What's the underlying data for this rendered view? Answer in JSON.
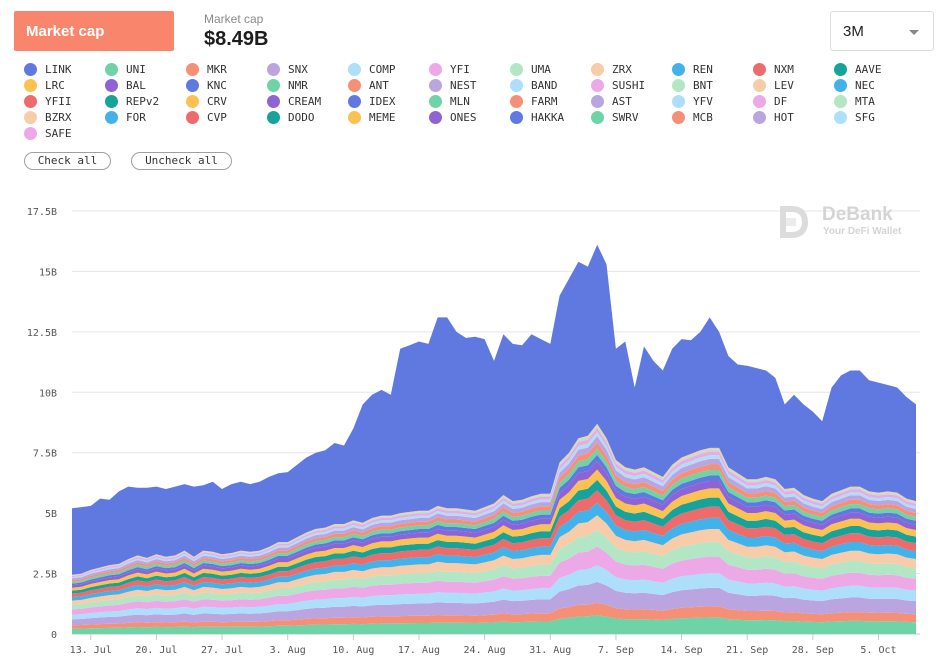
{
  "header": {
    "metric_button": "Market cap",
    "metric_label": "Market cap",
    "metric_value": "$8.49B",
    "range_select": "3M"
  },
  "legend_items": [
    {
      "label": "LINK",
      "color": "#6079e0"
    },
    {
      "label": "UNI",
      "color": "#6fd3a8"
    },
    {
      "label": "MKR",
      "color": "#f59077"
    },
    {
      "label": "SNX",
      "color": "#bba5e0"
    },
    {
      "label": "COMP",
      "color": "#aedffa"
    },
    {
      "label": "YFI",
      "color": "#eda8e7"
    },
    {
      "label": "UMA",
      "color": "#b2e6c4"
    },
    {
      "label": "ZRX",
      "color": "#f8cba9"
    },
    {
      "label": "REN",
      "color": "#42b2ea"
    },
    {
      "label": "NXM",
      "color": "#ee6b6b"
    },
    {
      "label": "AAVE",
      "color": "#15a39b"
    },
    {
      "label": "LRC",
      "color": "#fbc251"
    },
    {
      "label": "BAL",
      "color": "#8e63d6"
    },
    {
      "label": "KNC",
      "color": "#6079e0"
    },
    {
      "label": "NMR",
      "color": "#6fd3a8"
    },
    {
      "label": "ANT",
      "color": "#f59077"
    },
    {
      "label": "NEST",
      "color": "#bba5e0"
    },
    {
      "label": "BAND",
      "color": "#aedffa"
    },
    {
      "label": "SUSHI",
      "color": "#eda8e7"
    },
    {
      "label": "BNT",
      "color": "#b2e6c4"
    },
    {
      "label": "LEV",
      "color": "#f8cba9"
    },
    {
      "label": "NEC",
      "color": "#42b2ea"
    },
    {
      "label": "YFII",
      "color": "#ee6b6b"
    },
    {
      "label": "REPv2",
      "color": "#15a39b"
    },
    {
      "label": "CRV",
      "color": "#fbc251"
    },
    {
      "label": "CREAM",
      "color": "#8e63d6"
    },
    {
      "label": "IDEX",
      "color": "#6079e0"
    },
    {
      "label": "MLN",
      "color": "#6fd3a8"
    },
    {
      "label": "FARM",
      "color": "#f59077"
    },
    {
      "label": "AST",
      "color": "#bba5e0"
    },
    {
      "label": "YFV",
      "color": "#aedffa"
    },
    {
      "label": "DF",
      "color": "#eda8e7"
    },
    {
      "label": "MTA",
      "color": "#b2e6c4"
    },
    {
      "label": "BZRX",
      "color": "#f8cba9"
    },
    {
      "label": "FOR",
      "color": "#42b2ea"
    },
    {
      "label": "CVP",
      "color": "#ee6b6b"
    },
    {
      "label": "DODO",
      "color": "#15a39b"
    },
    {
      "label": "MEME",
      "color": "#fbc251"
    },
    {
      "label": "ONES",
      "color": "#8e63d6"
    },
    {
      "label": "HAKKA",
      "color": "#6079e0"
    },
    {
      "label": "SWRV",
      "color": "#6fd3a8"
    },
    {
      "label": "MCB",
      "color": "#f59077"
    },
    {
      "label": "HOT",
      "color": "#bba5e0"
    },
    {
      "label": "SFG",
      "color": "#aedffa"
    },
    {
      "label": "SAFE",
      "color": "#eda8e7"
    }
  ],
  "controls": {
    "check_all": "Check all",
    "uncheck_all": "Uncheck all"
  },
  "watermark": {
    "title": "DeBank",
    "subtitle": "Your DeFi Wallet"
  },
  "chart_data": {
    "type": "area",
    "stacked": true,
    "ylim": [
      0,
      17.5
    ],
    "y_ticks": [
      0,
      2.5,
      5,
      7.5,
      10,
      12.5,
      15,
      17.5
    ],
    "y_tick_labels": [
      "0",
      "2.5B",
      "5B",
      "7.5B",
      "10B",
      "12.5B",
      "15B",
      "17.5B"
    ],
    "x_tick_labels": [
      "13. Jul",
      "20. Jul",
      "27. Jul",
      "3. Aug",
      "10. Aug",
      "17. Aug",
      "24. Aug",
      "31. Aug",
      "7. Sep",
      "14. Sep",
      "21. Sep",
      "28. Sep",
      "5. Oct"
    ],
    "x_tick_index": [
      2,
      9,
      16,
      23,
      30,
      37,
      44,
      51,
      58,
      65,
      72,
      79,
      86
    ],
    "x_dates": [
      "Jul 11",
      "Jul 12",
      "Jul 13",
      "Jul 14",
      "Jul 15",
      "Jul 16",
      "Jul 17",
      "Jul 18",
      "Jul 19",
      "Jul 20",
      "Jul 21",
      "Jul 22",
      "Jul 23",
      "Jul 24",
      "Jul 25",
      "Jul 26",
      "Jul 27",
      "Jul 28",
      "Jul 29",
      "Jul 30",
      "Jul 31",
      "Aug 1",
      "Aug 2",
      "Aug 3",
      "Aug 4",
      "Aug 5",
      "Aug 6",
      "Aug 7",
      "Aug 8",
      "Aug 9",
      "Aug 10",
      "Aug 11",
      "Aug 12",
      "Aug 13",
      "Aug 14",
      "Aug 15",
      "Aug 16",
      "Aug 17",
      "Aug 18",
      "Aug 19",
      "Aug 20",
      "Aug 21",
      "Aug 22",
      "Aug 23",
      "Aug 24",
      "Aug 25",
      "Aug 26",
      "Aug 27",
      "Aug 28",
      "Aug 29",
      "Aug 30",
      "Aug 31",
      "Sep 1",
      "Sep 2",
      "Sep 3",
      "Sep 4",
      "Sep 5",
      "Sep 6",
      "Sep 7",
      "Sep 8",
      "Sep 9",
      "Sep 10",
      "Sep 11",
      "Sep 12",
      "Sep 13",
      "Sep 14",
      "Sep 15",
      "Sep 16",
      "Sep 17",
      "Sep 18",
      "Sep 19",
      "Sep 20",
      "Sep 21",
      "Sep 22",
      "Sep 23",
      "Sep 24",
      "Sep 25",
      "Sep 26",
      "Sep 27",
      "Sep 28",
      "Sep 29",
      "Sep 30",
      "Oct 1",
      "Oct 2",
      "Oct 3",
      "Oct 4",
      "Oct 5",
      "Oct 6",
      "Oct 7",
      "Oct 8",
      "Oct 9"
    ],
    "total_market_cap_billions": [
      5.2,
      5.25,
      5.3,
      5.6,
      5.55,
      5.9,
      6.1,
      6.05,
      6.05,
      6.1,
      6.0,
      6.1,
      6.2,
      6.1,
      6.15,
      6.3,
      6.0,
      6.2,
      6.3,
      6.2,
      6.3,
      6.5,
      6.65,
      6.7,
      7.0,
      7.3,
      7.5,
      7.6,
      7.9,
      7.8,
      8.5,
      9.5,
      9.9,
      10.1,
      9.9,
      11.8,
      11.95,
      12.1,
      12.0,
      13.1,
      13.1,
      12.5,
      12.25,
      12.3,
      12.2,
      11.3,
      12.4,
      12.0,
      11.95,
      12.4,
      12.2,
      12.0,
      14.0,
      14.7,
      15.4,
      15.2,
      16.1,
      15.3,
      11.8,
      12.1,
      10.2,
      11.9,
      11.3,
      10.9,
      11.8,
      12.2,
      12.15,
      12.5,
      13.1,
      12.5,
      11.5,
      11.15,
      11.1,
      11.0,
      10.9,
      10.6,
      9.5,
      9.9,
      9.5,
      9.2,
      8.8,
      10.2,
      10.7,
      10.9,
      10.9,
      10.5,
      10.4,
      10.3,
      10.2,
      9.8,
      9.5
    ],
    "link_market_cap_billions": [
      2.75,
      2.75,
      2.65,
      2.85,
      2.7,
      3.0,
      3.0,
      2.8,
      2.9,
      2.8,
      2.8,
      2.85,
      2.75,
      2.9,
      2.7,
      2.9,
      2.7,
      2.85,
      2.85,
      2.8,
      2.85,
      2.9,
      2.85,
      2.9,
      3.0,
      3.1,
      3.15,
      3.2,
      3.35,
      3.25,
      3.8,
      4.9,
      5.1,
      5.2,
      5.0,
      6.8,
      6.9,
      7.0,
      6.9,
      7.8,
      7.9,
      7.3,
      7.1,
      7.2,
      6.95,
      5.9,
      6.65,
      6.5,
      6.4,
      6.7,
      6.4,
      6.2,
      6.9,
      7.2,
      7.3,
      7.0,
      7.4,
      7.2,
      4.6,
      5.2,
      3.4,
      5.0,
      4.6,
      4.4,
      4.8,
      4.9,
      4.7,
      4.9,
      5.4,
      4.8,
      4.6,
      4.5,
      4.7,
      4.6,
      4.4,
      4.2,
      3.5,
      3.85,
      3.75,
      3.6,
      3.3,
      4.4,
      4.75,
      4.8,
      4.8,
      4.6,
      4.55,
      4.4,
      4.35,
      4.2,
      4.0
    ]
  }
}
